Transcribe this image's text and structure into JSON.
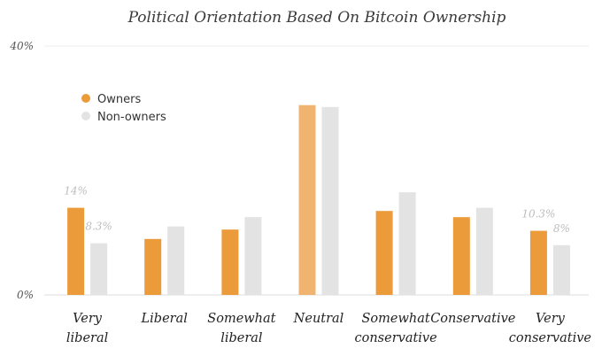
{
  "chart_data": {
    "type": "bar",
    "title": "Political Orientation Based On Bitcoin Ownership",
    "xlabel": "",
    "ylabel": "",
    "ylim": [
      0,
      40
    ],
    "y_ticks": [
      "0%",
      "40%"
    ],
    "grid": true,
    "legend_position": "top-left",
    "categories": [
      [
        "Very",
        "liberal"
      ],
      [
        "Liberal"
      ],
      [
        "Somewhat",
        "liberal"
      ],
      [
        "Neutral"
      ],
      [
        "Somewhat",
        "conservative"
      ],
      [
        "Conservative"
      ],
      [
        "Very",
        "conservative"
      ]
    ],
    "series": [
      {
        "name": "Owners",
        "color": "#ec9b3b",
        "values": [
          14,
          9,
          10.5,
          30.5,
          13.5,
          12.5,
          10.3
        ],
        "labels": [
          "14%",
          null,
          null,
          null,
          null,
          null,
          "10.3%"
        ]
      },
      {
        "name": "Non-owners",
        "color": "#e3e3e3",
        "values": [
          8.3,
          11,
          12.5,
          30.2,
          16.5,
          14,
          8
        ],
        "labels": [
          "8.3%",
          null,
          null,
          null,
          null,
          null,
          "8%"
        ]
      }
    ],
    "highlight_color": "#f1b370"
  }
}
